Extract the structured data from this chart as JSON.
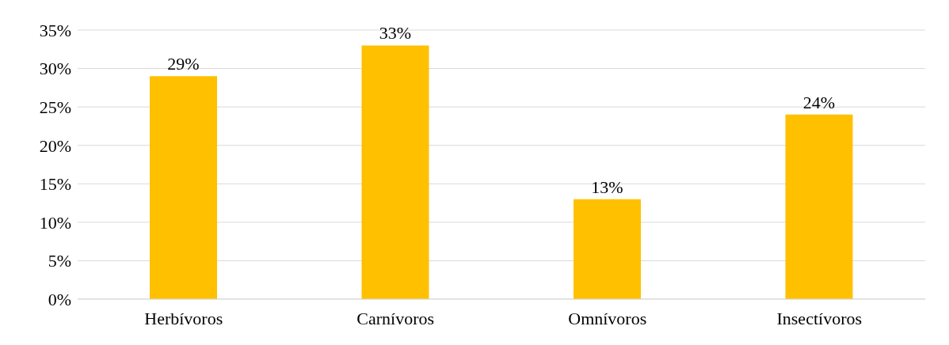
{
  "chart_data": {
    "type": "bar",
    "categories": [
      "Herbívoros",
      "Carnívoros",
      "Omnívoros",
      "Insectívoros"
    ],
    "values": [
      29,
      33,
      13,
      24
    ],
    "value_labels": [
      "29%",
      "33%",
      "13%",
      "24%"
    ],
    "color": "#ffc000",
    "ylim": [
      0,
      35
    ],
    "yticks": [
      {
        "value": 0,
        "label": "0%"
      },
      {
        "value": 5,
        "label": "5%"
      },
      {
        "value": 10,
        "label": "10%"
      },
      {
        "value": 15,
        "label": "15%"
      },
      {
        "value": 20,
        "label": "20%"
      },
      {
        "value": 25,
        "label": "25%"
      },
      {
        "value": 30,
        "label": "30%"
      },
      {
        "value": 35,
        "label": "35%"
      }
    ],
    "grid": "y"
  }
}
